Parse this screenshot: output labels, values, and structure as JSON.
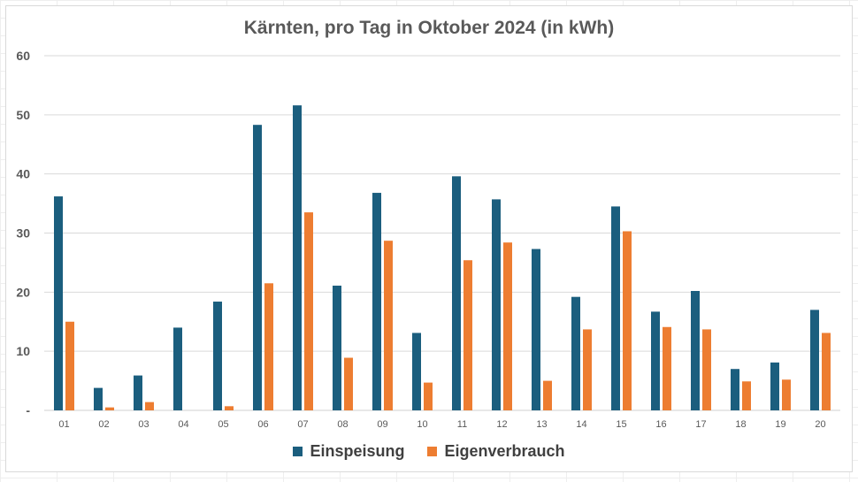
{
  "chart_data": {
    "type": "bar",
    "title": "Kärnten, pro Tag in Oktober 2024 (in kWh)",
    "categories": [
      "01",
      "02",
      "03",
      "04",
      "05",
      "06",
      "07",
      "08",
      "09",
      "10",
      "11",
      "12",
      "13",
      "14",
      "15",
      "16",
      "17",
      "18",
      "19",
      "20"
    ],
    "series": [
      {
        "name": "Einspeisung",
        "color": "#1b5e7e",
        "values": [
          36.2,
          3.8,
          5.9,
          14.0,
          18.4,
          48.3,
          51.6,
          21.1,
          36.8,
          13.1,
          39.6,
          35.7,
          27.3,
          19.2,
          34.5,
          16.7,
          20.2,
          7.0,
          8.1,
          17.0
        ]
      },
      {
        "name": "Eigenverbrauch",
        "color": "#ed7d31",
        "values": [
          15.0,
          0.5,
          1.4,
          0.0,
          0.7,
          21.5,
          33.5,
          8.9,
          28.7,
          4.7,
          25.4,
          28.4,
          5.0,
          13.7,
          30.3,
          14.1,
          13.7,
          4.9,
          5.2,
          13.1
        ]
      }
    ],
    "yticks": [
      "-",
      "10",
      "20",
      "30",
      "40",
      "50",
      "60"
    ],
    "ylim": [
      0,
      60
    ],
    "grid": true,
    "legend_position": "bottom"
  }
}
